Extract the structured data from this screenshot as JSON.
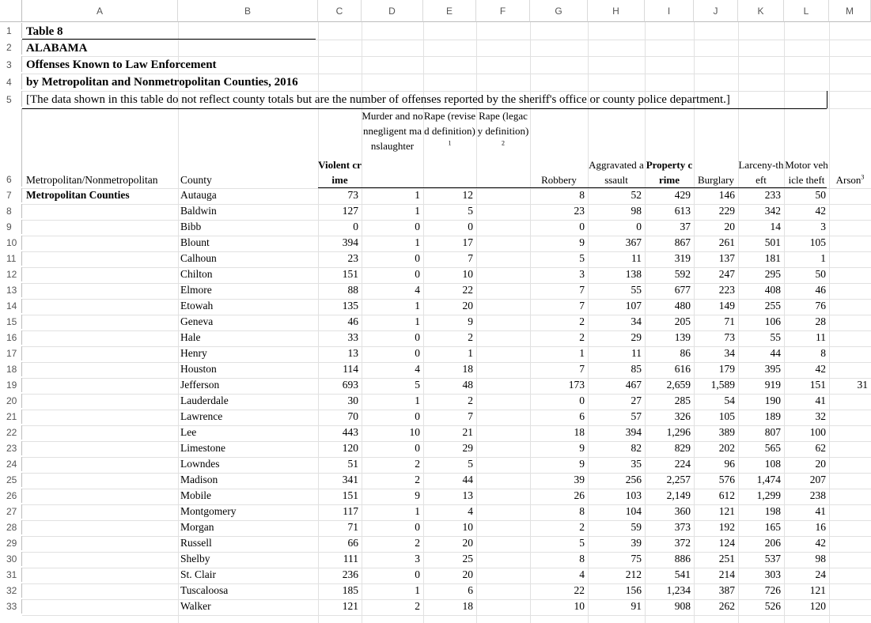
{
  "columns": [
    "A",
    "B",
    "C",
    "D",
    "E",
    "F",
    "G",
    "H",
    "I",
    "J",
    "K",
    "L",
    "M"
  ],
  "rows": [
    "1",
    "2",
    "3",
    "4",
    "5",
    "6",
    "7",
    "8",
    "9",
    "10",
    "11",
    "12",
    "13",
    "14",
    "15",
    "16",
    "17",
    "18",
    "19",
    "20",
    "21",
    "22",
    "23",
    "24",
    "25",
    "26",
    "27",
    "28",
    "29",
    "30",
    "31",
    "32",
    "33"
  ],
  "title": {
    "line1": "Table 8",
    "line2": "ALABAMA",
    "line3": "Offenses Known to Law Enforcement",
    "line4": "by Metropolitan and Nonmetropolitan Counties, 2016",
    "note": "[The data shown in this table do not reflect county totals but are the number of offenses reported by the sheriff's office or county police department.]"
  },
  "headers": {
    "metro": "Metropolitan/Nonmetropolitan",
    "county": "County",
    "violent": "Violent crime",
    "murder": "Murder and nonnegligent manslaughter",
    "rape_revised": "Rape (revised definition)",
    "rape_revised_sup": "1",
    "rape_legacy": "Rape (legacy definition)",
    "rape_legacy_sup": "2",
    "robbery": "Robbery",
    "aggravated": "Aggravated assault",
    "property": "Property crime",
    "burglary": "Burglary",
    "larceny": "Larceny-theft",
    "motor": "Motor vehicle theft",
    "arson": "Arson",
    "arson_sup": "3"
  },
  "group_label": "Metropolitan Counties",
  "data_rows": [
    {
      "county": "Autauga",
      "violent": "73",
      "murder": "1",
      "rape_rev": "12",
      "rape_leg": "",
      "robbery": "8",
      "agg": "52",
      "property": "429",
      "burglary": "146",
      "larceny": "233",
      "motor": "50",
      "arson": ""
    },
    {
      "county": "Baldwin",
      "violent": "127",
      "murder": "1",
      "rape_rev": "5",
      "rape_leg": "",
      "robbery": "23",
      "agg": "98",
      "property": "613",
      "burglary": "229",
      "larceny": "342",
      "motor": "42",
      "arson": ""
    },
    {
      "county": "Bibb",
      "violent": "0",
      "murder": "0",
      "rape_rev": "0",
      "rape_leg": "",
      "robbery": "0",
      "agg": "0",
      "property": "37",
      "burglary": "20",
      "larceny": "14",
      "motor": "3",
      "arson": ""
    },
    {
      "county": "Blount",
      "violent": "394",
      "murder": "1",
      "rape_rev": "17",
      "rape_leg": "",
      "robbery": "9",
      "agg": "367",
      "property": "867",
      "burglary": "261",
      "larceny": "501",
      "motor": "105",
      "arson": ""
    },
    {
      "county": "Calhoun",
      "violent": "23",
      "murder": "0",
      "rape_rev": "7",
      "rape_leg": "",
      "robbery": "5",
      "agg": "11",
      "property": "319",
      "burglary": "137",
      "larceny": "181",
      "motor": "1",
      "arson": ""
    },
    {
      "county": "Chilton",
      "violent": "151",
      "murder": "0",
      "rape_rev": "10",
      "rape_leg": "",
      "robbery": "3",
      "agg": "138",
      "property": "592",
      "burglary": "247",
      "larceny": "295",
      "motor": "50",
      "arson": ""
    },
    {
      "county": "Elmore",
      "violent": "88",
      "murder": "4",
      "rape_rev": "22",
      "rape_leg": "",
      "robbery": "7",
      "agg": "55",
      "property": "677",
      "burglary": "223",
      "larceny": "408",
      "motor": "46",
      "arson": ""
    },
    {
      "county": "Etowah",
      "violent": "135",
      "murder": "1",
      "rape_rev": "20",
      "rape_leg": "",
      "robbery": "7",
      "agg": "107",
      "property": "480",
      "burglary": "149",
      "larceny": "255",
      "motor": "76",
      "arson": ""
    },
    {
      "county": "Geneva",
      "violent": "46",
      "murder": "1",
      "rape_rev": "9",
      "rape_leg": "",
      "robbery": "2",
      "agg": "34",
      "property": "205",
      "burglary": "71",
      "larceny": "106",
      "motor": "28",
      "arson": ""
    },
    {
      "county": "Hale",
      "violent": "33",
      "murder": "0",
      "rape_rev": "2",
      "rape_leg": "",
      "robbery": "2",
      "agg": "29",
      "property": "139",
      "burglary": "73",
      "larceny": "55",
      "motor": "11",
      "arson": ""
    },
    {
      "county": "Henry",
      "violent": "13",
      "murder": "0",
      "rape_rev": "1",
      "rape_leg": "",
      "robbery": "1",
      "agg": "11",
      "property": "86",
      "burglary": "34",
      "larceny": "44",
      "motor": "8",
      "arson": ""
    },
    {
      "county": "Houston",
      "violent": "114",
      "murder": "4",
      "rape_rev": "18",
      "rape_leg": "",
      "robbery": "7",
      "agg": "85",
      "property": "616",
      "burglary": "179",
      "larceny": "395",
      "motor": "42",
      "arson": ""
    },
    {
      "county": "Jefferson",
      "violent": "693",
      "murder": "5",
      "rape_rev": "48",
      "rape_leg": "",
      "robbery": "173",
      "agg": "467",
      "property": "2,659",
      "burglary": "1,589",
      "larceny": "919",
      "motor": "151",
      "arson": "31"
    },
    {
      "county": "Lauderdale",
      "violent": "30",
      "murder": "1",
      "rape_rev": "2",
      "rape_leg": "",
      "robbery": "0",
      "agg": "27",
      "property": "285",
      "burglary": "54",
      "larceny": "190",
      "motor": "41",
      "arson": ""
    },
    {
      "county": "Lawrence",
      "violent": "70",
      "murder": "0",
      "rape_rev": "7",
      "rape_leg": "",
      "robbery": "6",
      "agg": "57",
      "property": "326",
      "burglary": "105",
      "larceny": "189",
      "motor": "32",
      "arson": ""
    },
    {
      "county": "Lee",
      "violent": "443",
      "murder": "10",
      "rape_rev": "21",
      "rape_leg": "",
      "robbery": "18",
      "agg": "394",
      "property": "1,296",
      "burglary": "389",
      "larceny": "807",
      "motor": "100",
      "arson": ""
    },
    {
      "county": "Limestone",
      "violent": "120",
      "murder": "0",
      "rape_rev": "29",
      "rape_leg": "",
      "robbery": "9",
      "agg": "82",
      "property": "829",
      "burglary": "202",
      "larceny": "565",
      "motor": "62",
      "arson": ""
    },
    {
      "county": "Lowndes",
      "violent": "51",
      "murder": "2",
      "rape_rev": "5",
      "rape_leg": "",
      "robbery": "9",
      "agg": "35",
      "property": "224",
      "burglary": "96",
      "larceny": "108",
      "motor": "20",
      "arson": ""
    },
    {
      "county": "Madison",
      "violent": "341",
      "murder": "2",
      "rape_rev": "44",
      "rape_leg": "",
      "robbery": "39",
      "agg": "256",
      "property": "2,257",
      "burglary": "576",
      "larceny": "1,474",
      "motor": "207",
      "arson": ""
    },
    {
      "county": "Mobile",
      "violent": "151",
      "murder": "9",
      "rape_rev": "13",
      "rape_leg": "",
      "robbery": "26",
      "agg": "103",
      "property": "2,149",
      "burglary": "612",
      "larceny": "1,299",
      "motor": "238",
      "arson": ""
    },
    {
      "county": "Montgomery",
      "violent": "117",
      "murder": "1",
      "rape_rev": "4",
      "rape_leg": "",
      "robbery": "8",
      "agg": "104",
      "property": "360",
      "burglary": "121",
      "larceny": "198",
      "motor": "41",
      "arson": ""
    },
    {
      "county": "Morgan",
      "violent": "71",
      "murder": "0",
      "rape_rev": "10",
      "rape_leg": "",
      "robbery": "2",
      "agg": "59",
      "property": "373",
      "burglary": "192",
      "larceny": "165",
      "motor": "16",
      "arson": ""
    },
    {
      "county": "Russell",
      "violent": "66",
      "murder": "2",
      "rape_rev": "20",
      "rape_leg": "",
      "robbery": "5",
      "agg": "39",
      "property": "372",
      "burglary": "124",
      "larceny": "206",
      "motor": "42",
      "arson": ""
    },
    {
      "county": "Shelby",
      "violent": "111",
      "murder": "3",
      "rape_rev": "25",
      "rape_leg": "",
      "robbery": "8",
      "agg": "75",
      "property": "886",
      "burglary": "251",
      "larceny": "537",
      "motor": "98",
      "arson": ""
    },
    {
      "county": "St. Clair",
      "violent": "236",
      "murder": "0",
      "rape_rev": "20",
      "rape_leg": "",
      "robbery": "4",
      "agg": "212",
      "property": "541",
      "burglary": "214",
      "larceny": "303",
      "motor": "24",
      "arson": ""
    },
    {
      "county": "Tuscaloosa",
      "violent": "185",
      "murder": "1",
      "rape_rev": "6",
      "rape_leg": "",
      "robbery": "22",
      "agg": "156",
      "property": "1,234",
      "burglary": "387",
      "larceny": "726",
      "motor": "121",
      "arson": ""
    },
    {
      "county": "Walker",
      "violent": "121",
      "murder": "2",
      "rape_rev": "18",
      "rape_leg": "",
      "robbery": "10",
      "agg": "91",
      "property": "908",
      "burglary": "262",
      "larceny": "526",
      "motor": "120",
      "arson": ""
    }
  ]
}
